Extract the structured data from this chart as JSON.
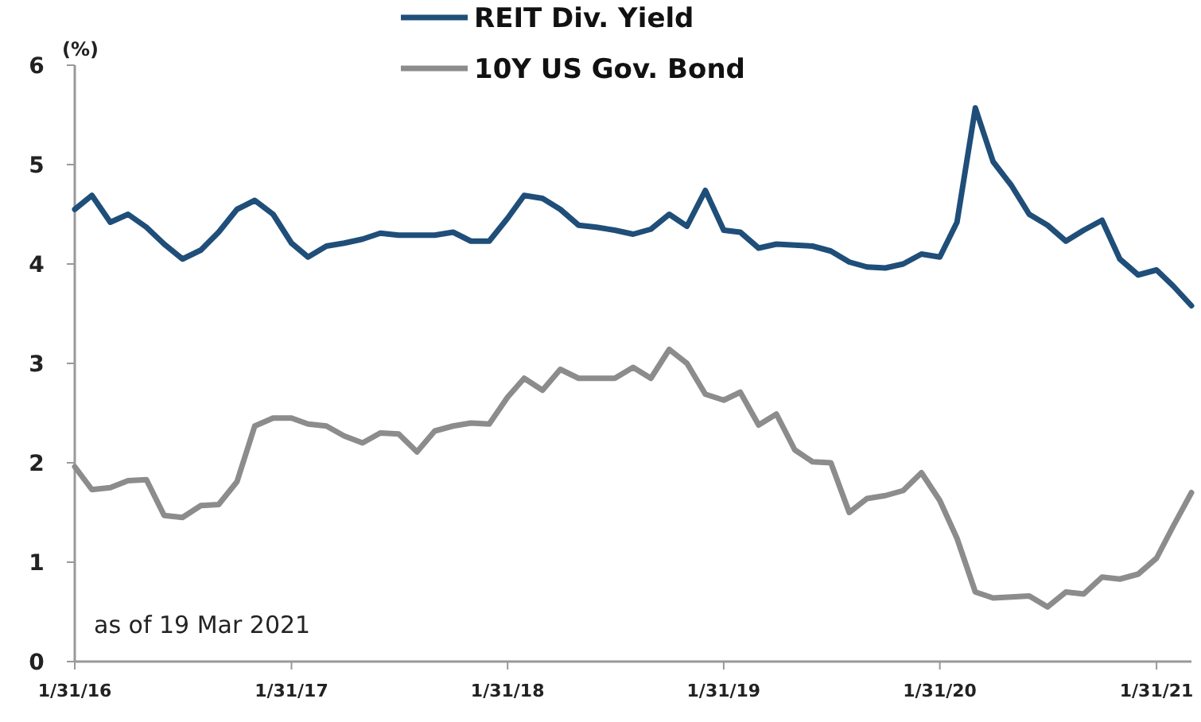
{
  "chart_data": {
    "type": "line",
    "ylabel": "(%)",
    "x": [
      "2016-01-31",
      "2016-02-29",
      "2016-03-31",
      "2016-04-30",
      "2016-05-31",
      "2016-06-30",
      "2016-07-31",
      "2016-08-31",
      "2016-09-30",
      "2016-10-31",
      "2016-11-30",
      "2016-12-31",
      "2017-01-31",
      "2017-02-28",
      "2017-03-31",
      "2017-04-30",
      "2017-05-31",
      "2017-06-30",
      "2017-07-31",
      "2017-08-31",
      "2017-09-30",
      "2017-10-31",
      "2017-11-30",
      "2017-12-31",
      "2018-01-31",
      "2018-02-28",
      "2018-03-31",
      "2018-04-30",
      "2018-05-31",
      "2018-06-30",
      "2018-07-31",
      "2018-08-31",
      "2018-09-30",
      "2018-10-31",
      "2018-11-30",
      "2018-12-31",
      "2019-01-31",
      "2019-02-28",
      "2019-03-31",
      "2019-04-30",
      "2019-05-31",
      "2019-06-30",
      "2019-07-31",
      "2019-08-31",
      "2019-09-30",
      "2019-10-31",
      "2019-11-30",
      "2019-12-31",
      "2020-01-31",
      "2020-02-29",
      "2020-03-31",
      "2020-04-30",
      "2020-05-31",
      "2020-06-30",
      "2020-07-31",
      "2020-08-31",
      "2020-09-30",
      "2020-10-31",
      "2020-11-30",
      "2020-12-31",
      "2021-01-31",
      "2021-02-28",
      "2021-03-31"
    ],
    "series": [
      {
        "name": "REIT Div. Yield",
        "color": "#1f4e79",
        "values": [
          4.55,
          4.69,
          4.42,
          4.5,
          4.37,
          4.2,
          4.05,
          4.14,
          4.32,
          4.55,
          4.64,
          4.5,
          4.21,
          4.07,
          4.18,
          4.21,
          4.25,
          4.31,
          4.29,
          4.29,
          4.29,
          4.32,
          4.23,
          4.23,
          4.46,
          4.69,
          4.66,
          4.55,
          4.39,
          4.37,
          4.34,
          4.3,
          4.35,
          4.5,
          4.38,
          4.74,
          4.34,
          4.32,
          4.16,
          4.2,
          4.19,
          4.18,
          4.13,
          4.02,
          3.97,
          3.96,
          4.0,
          4.1,
          4.07,
          4.42,
          5.57,
          5.03,
          4.79,
          4.5,
          4.39,
          4.23,
          4.34,
          4.44,
          4.05,
          3.89,
          3.94,
          3.78,
          3.58
        ]
      },
      {
        "name": "10Y US Gov. Bond",
        "color": "#8c8c8c",
        "values": [
          1.96,
          1.73,
          1.75,
          1.82,
          1.83,
          1.47,
          1.45,
          1.57,
          1.58,
          1.81,
          2.37,
          2.45,
          2.45,
          2.39,
          2.37,
          2.27,
          2.2,
          2.3,
          2.29,
          2.11,
          2.32,
          2.37,
          2.4,
          2.39,
          2.66,
          2.85,
          2.73,
          2.94,
          2.85,
          2.85,
          2.85,
          2.96,
          2.85,
          3.14,
          3.0,
          2.69,
          2.63,
          2.71,
          2.38,
          2.49,
          2.13,
          2.01,
          2.0,
          1.5,
          1.64,
          1.67,
          1.72,
          1.9,
          1.62,
          1.24,
          0.7,
          0.64,
          0.65,
          0.66,
          0.55,
          0.7,
          0.68,
          0.85,
          0.83,
          0.88,
          1.04,
          1.36,
          1.7
        ]
      }
    ],
    "xlim": [
      "2016-01-31",
      "2021-03-31"
    ],
    "xticks": [
      {
        "value": "2016-01-31",
        "label": "1/31/16"
      },
      {
        "value": "2017-01-31",
        "label": "1/31/17"
      },
      {
        "value": "2018-01-31",
        "label": "1/31/18"
      },
      {
        "value": "2019-01-31",
        "label": "1/31/19"
      },
      {
        "value": "2020-01-31",
        "label": "1/31/20"
      },
      {
        "value": "2021-01-31",
        "label": "1/31/21"
      }
    ],
    "ylim": [
      0,
      6
    ],
    "yticks": [
      0,
      1,
      2,
      3,
      4,
      5,
      6
    ],
    "legend": "top",
    "grid": false,
    "line_style": "solid",
    "marker": "none",
    "annotations": [
      "as of 19 Mar 2021"
    ]
  }
}
